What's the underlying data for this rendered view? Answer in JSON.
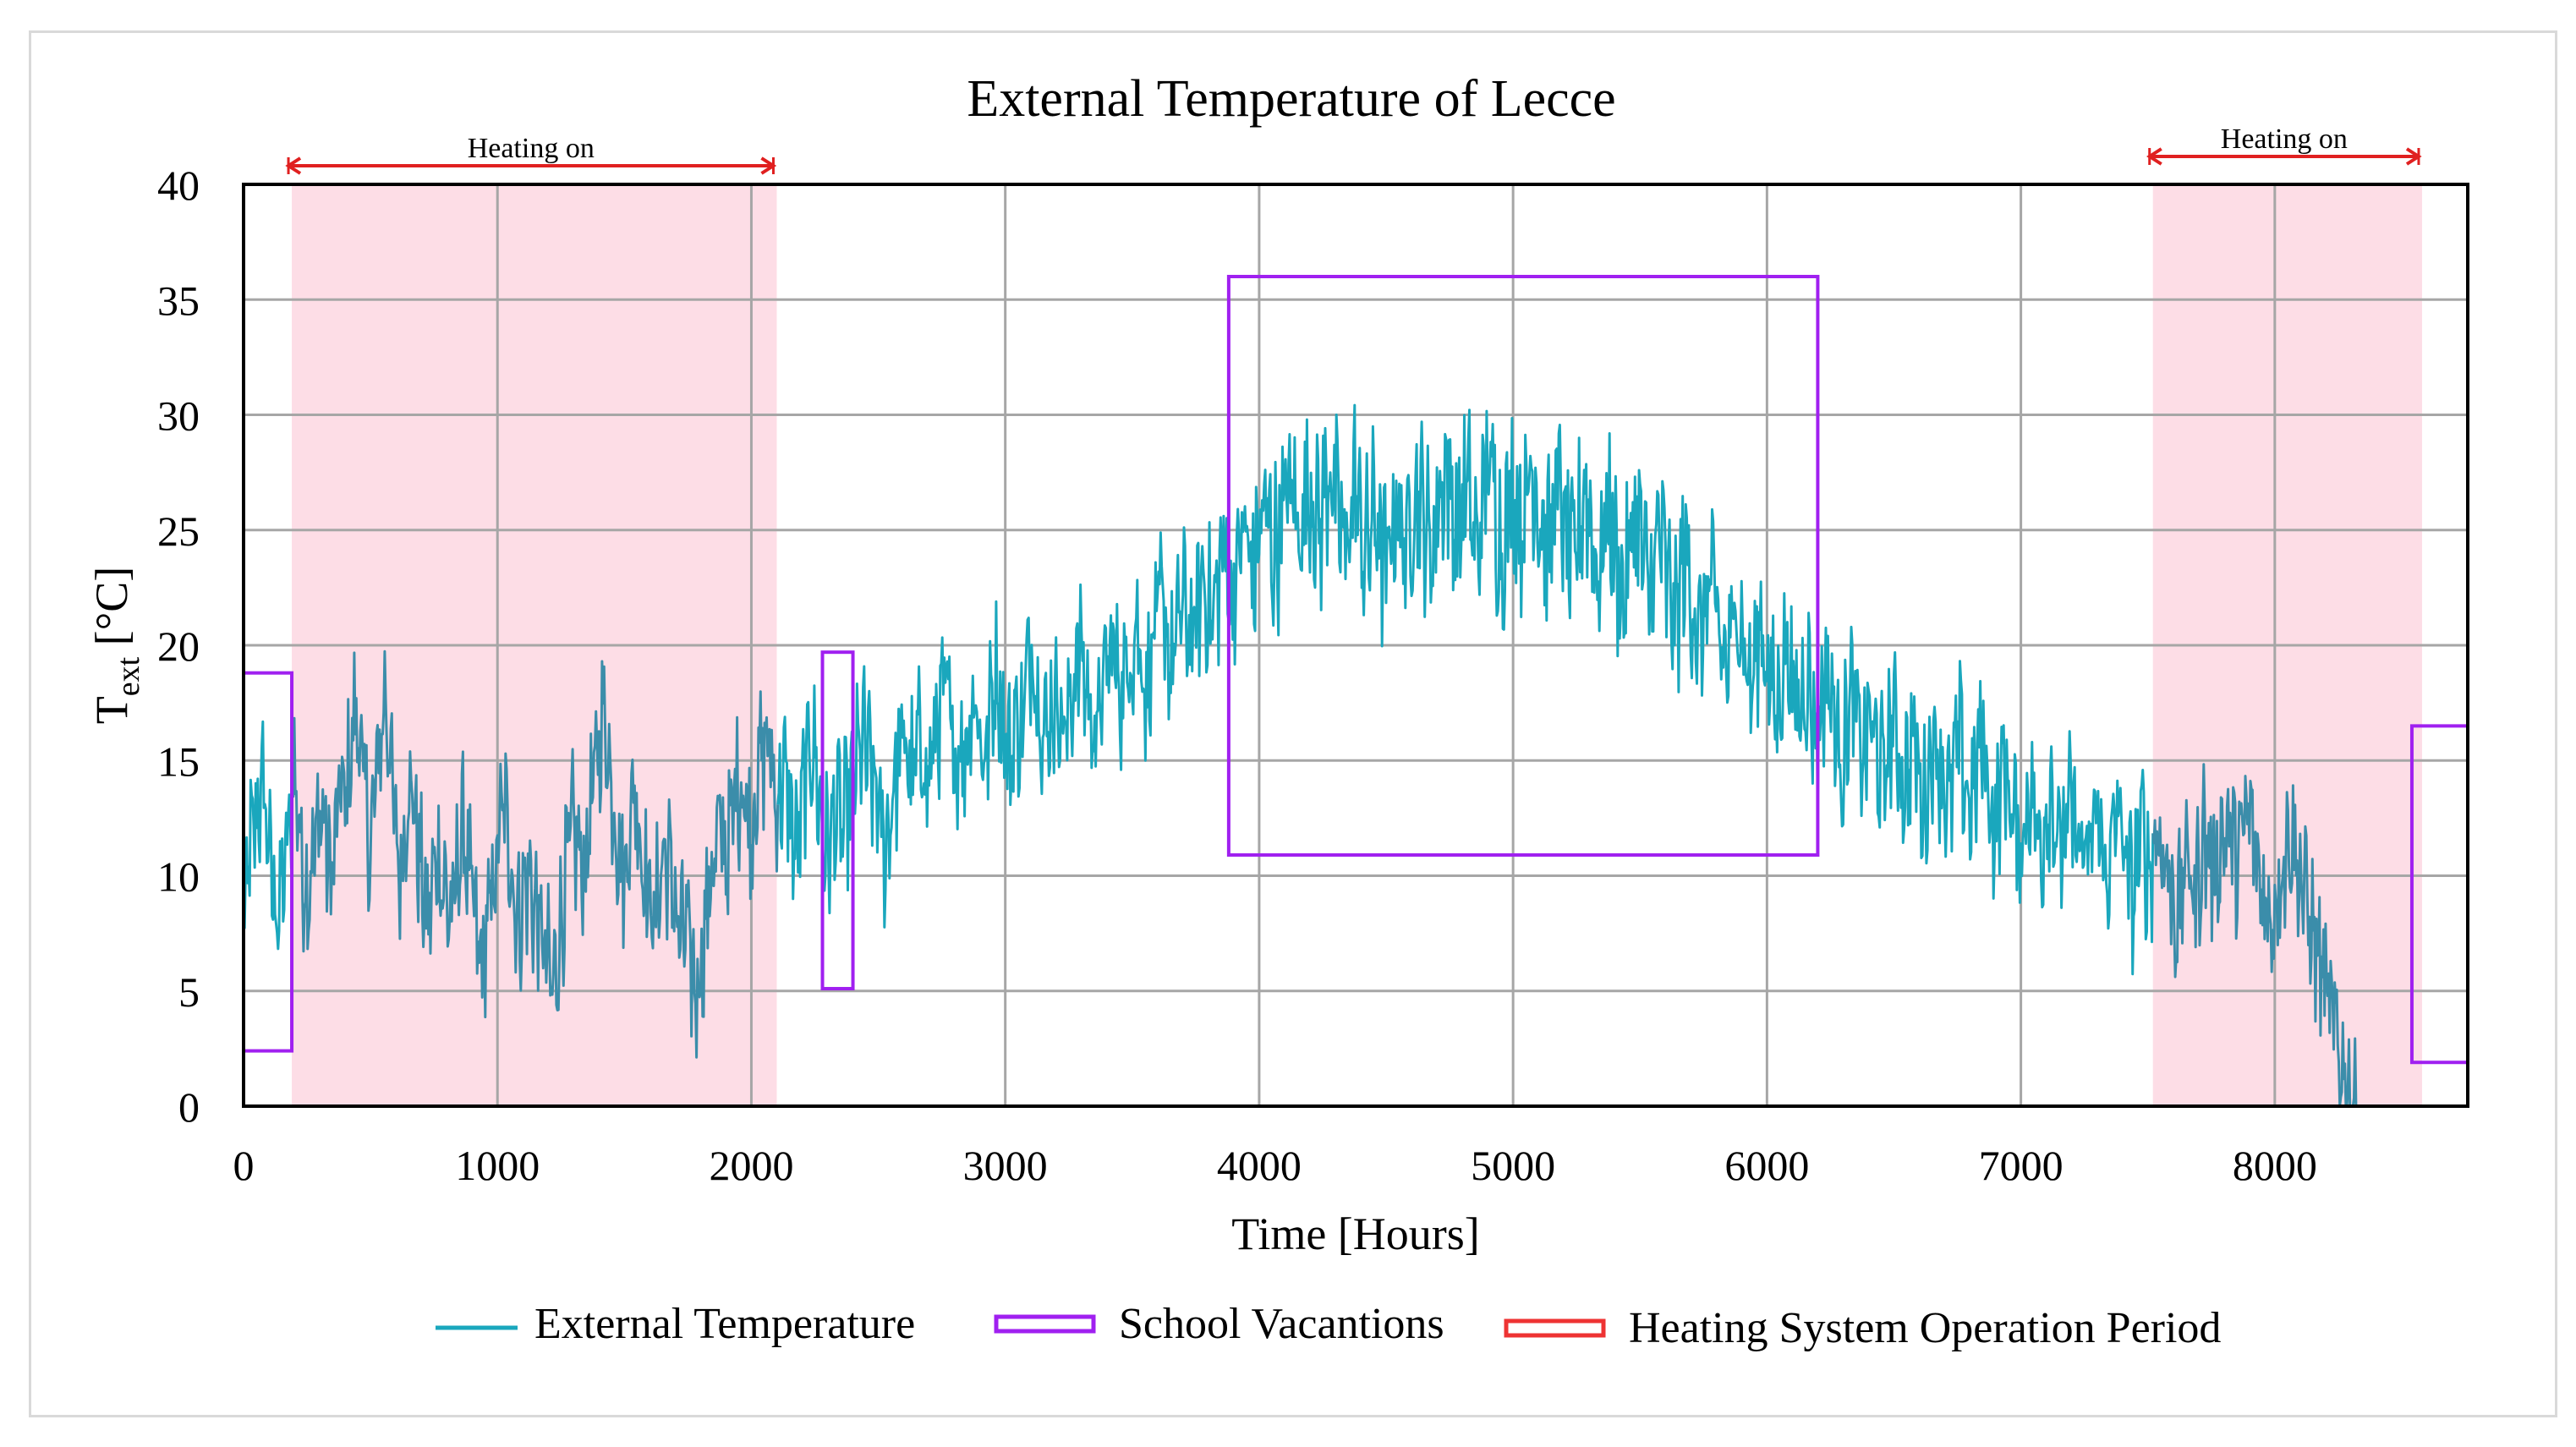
{
  "chart_data": {
    "type": "line",
    "title": "External Temperature of Lecce",
    "xlabel": "Time [Hours]",
    "ylabel_main": "T",
    "ylabel_sub": "ext",
    "ylabel_unit": " [°C]",
    "xlim": [
      0,
      8760
    ],
    "ylim": [
      0,
      40
    ],
    "x_ticks": [
      0,
      1000,
      2000,
      3000,
      4000,
      5000,
      6000,
      7000,
      8000
    ],
    "x_tick_labels": [
      "0",
      "1000",
      "2000",
      "3000",
      "4000",
      "5000",
      "6000",
      "7000",
      "8000"
    ],
    "y_ticks": [
      0,
      5,
      10,
      15,
      20,
      25,
      30,
      35,
      40
    ],
    "y_tick_labels": [
      "0",
      "5",
      "10",
      "15",
      "20",
      "25",
      "30",
      "35",
      "40"
    ],
    "grid": true,
    "series": [
      {
        "name": "External Temperature",
        "color": "#1aa7bd",
        "x_step_hours": 20,
        "values": [
          7,
          10.5,
          12,
          13,
          14,
          11,
          9,
          8.5,
          10,
          12,
          15,
          12,
          9.5,
          10,
          11,
          13,
          12,
          10,
          11,
          14,
          13,
          15,
          17,
          16,
          13,
          11,
          14,
          16,
          18,
          15,
          11.5,
          10,
          13,
          14,
          12,
          10,
          8,
          9,
          11,
          10,
          9,
          8,
          10,
          12,
          11,
          9,
          7,
          6,
          8,
          9,
          11,
          13,
          12,
          10,
          8,
          9,
          10,
          9,
          8,
          7,
          6,
          5,
          7,
          9,
          11,
          12,
          11,
          10,
          12,
          14,
          16,
          17,
          15,
          13,
          11,
          10,
          12,
          14,
          12,
          10,
          9,
          8,
          10,
          11,
          10,
          9,
          7,
          8,
          6,
          5,
          6,
          8,
          10,
          11,
          12,
          11,
          12,
          14,
          14,
          13,
          12,
          14,
          15,
          16,
          15,
          13,
          14,
          14,
          12,
          11,
          13,
          15,
          16,
          14,
          12,
          11,
          12,
          13,
          12,
          13,
          14,
          15,
          16,
          15,
          14,
          13,
          11,
          12,
          14,
          15,
          16,
          15,
          14,
          16,
          15,
          14,
          16,
          17,
          18,
          17,
          15,
          16,
          15,
          17,
          18,
          16,
          15,
          17,
          19,
          18,
          16,
          15,
          17,
          16,
          18,
          20,
          19,
          17,
          16,
          17,
          18,
          17,
          16,
          18,
          19,
          20,
          18,
          17,
          16,
          18,
          19,
          20,
          19,
          18,
          19,
          20,
          21,
          19,
          18,
          20,
          21,
          22,
          20,
          19,
          21,
          22,
          21,
          20,
          22,
          23,
          22,
          21,
          23,
          24,
          23,
          22,
          24,
          25,
          24,
          23,
          25,
          26,
          25,
          24,
          25,
          26,
          27,
          26,
          25,
          26,
          27,
          26,
          25,
          27,
          28,
          26,
          25,
          24,
          26,
          27,
          25,
          24,
          25,
          26,
          24,
          23,
          25,
          26,
          25,
          24,
          26,
          27,
          26,
          25,
          24,
          26,
          27,
          28,
          26,
          25,
          26,
          27,
          25,
          24,
          26,
          28,
          27,
          25,
          24,
          26,
          27,
          26,
          25,
          27,
          28,
          26,
          25,
          24,
          26,
          27,
          25,
          24,
          23,
          25,
          27,
          26,
          24,
          23,
          25,
          26,
          24,
          23,
          22,
          24,
          26,
          25,
          23,
          22,
          24,
          25,
          23,
          22,
          21,
          23,
          24,
          22,
          21,
          20,
          22,
          23,
          21,
          20,
          19,
          20,
          22,
          21,
          19,
          18,
          20,
          21,
          19,
          18,
          17,
          19,
          20,
          18,
          17,
          18,
          19,
          17,
          16,
          18,
          19,
          17,
          16,
          15,
          17,
          18,
          16,
          15,
          17,
          16,
          15,
          14,
          16,
          17,
          15,
          14,
          15,
          16,
          14,
          13,
          15,
          16,
          15,
          14,
          13,
          15,
          16,
          14,
          13,
          14,
          16,
          15,
          13,
          12,
          14,
          15,
          13,
          12,
          11,
          13,
          14,
          12,
          11,
          13,
          14,
          12,
          11,
          12,
          13,
          12,
          11,
          10,
          12,
          13,
          11,
          10,
          11,
          13,
          12,
          10,
          9,
          11,
          12,
          10,
          11,
          12,
          11,
          10,
          9,
          8,
          10,
          11,
          9,
          10,
          12,
          11,
          10,
          11,
          12,
          12,
          11,
          11,
          12,
          13,
          11,
          10,
          9,
          8,
          9,
          10,
          11,
          12,
          11,
          10
        ]
      }
    ],
    "school_vacations": [
      {
        "x_start": 0,
        "x_end": 190,
        "y_low": 2.4,
        "y_high": 18.8
      },
      {
        "x_start": 2280,
        "x_end": 2400,
        "y_low": 5.1,
        "y_high": 19.7
      },
      {
        "x_start": 3880,
        "x_end": 6200,
        "y_low": 10.9,
        "y_high": 36
      },
      {
        "x_start": 8540,
        "x_end": 8760,
        "y_low": 1.9,
        "y_high": 16.5
      }
    ],
    "heating_periods": [
      {
        "x_start": 190,
        "x_end": 2100,
        "label": "Heating on"
      },
      {
        "x_start": 7520,
        "x_end": 8580,
        "label": "Heating on"
      }
    ],
    "legend": [
      {
        "label": "External Temperature",
        "style": "line",
        "color": "#1aa7bd"
      },
      {
        "label": "School Vacantions",
        "style": "box",
        "color": "#a020f0"
      },
      {
        "label": "Heating System Operation Period",
        "style": "box",
        "color": "#ee3333"
      }
    ],
    "colors": {
      "series": "#1aa7bd",
      "heating_series": "#3b8daa",
      "vacation": "#a020f0",
      "heating_fill": "#fddde6",
      "heating_arrow": "#e02020",
      "grid": "#a6a6a6",
      "axis": "#000000"
    }
  }
}
